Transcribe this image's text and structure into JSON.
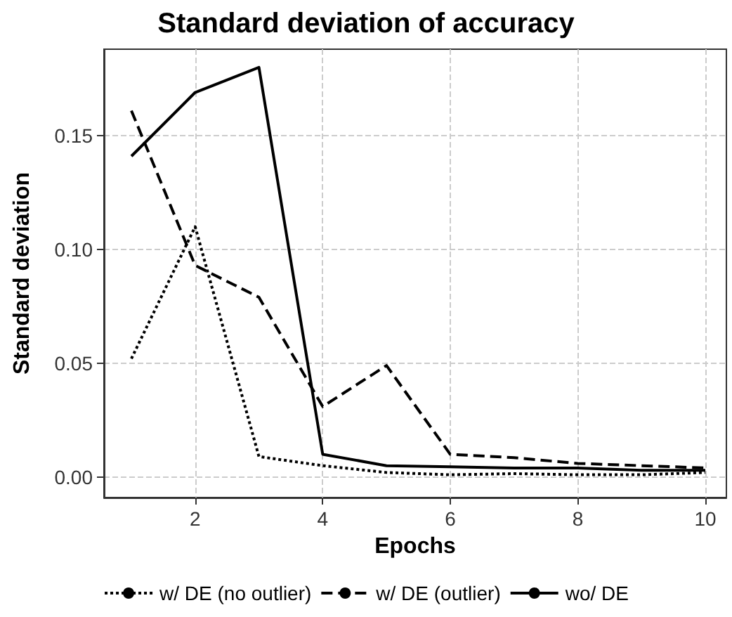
{
  "chart_data": {
    "type": "line",
    "title": "Standard deviation of accuracy",
    "xlabel": "Epochs",
    "ylabel": "Standard deviation",
    "x": [
      1,
      2,
      3,
      4,
      5,
      6,
      7,
      8,
      9,
      10
    ],
    "series": [
      {
        "name": "w/ DE (no outlier)",
        "color": "#000000",
        "line_style": "dotted",
        "values": [
          0.052,
          0.11,
          0.009,
          0.005,
          0.002,
          0.001,
          0.0015,
          0.001,
          0.001,
          0.002
        ]
      },
      {
        "name": "w/ DE (outlier)",
        "color": "#000000",
        "line_style": "dashed",
        "values": [
          0.161,
          0.093,
          0.079,
          0.031,
          0.049,
          0.01,
          0.0085,
          0.006,
          0.005,
          0.004
        ]
      },
      {
        "name": "wo/ DE",
        "color": "#000000",
        "line_style": "solid",
        "values": [
          0.141,
          0.169,
          0.18,
          0.01,
          0.005,
          0.0045,
          0.004,
          0.004,
          0.003,
          0.003
        ]
      }
    ],
    "xlim": [
      0.57,
      10.33
    ],
    "xticks": [
      2,
      4,
      6,
      8,
      10
    ],
    "ylim": [
      -0.009,
      0.188
    ],
    "yticks": [
      {
        "value": 0,
        "label": "0.00"
      },
      {
        "value": 0.05,
        "label": "0.05"
      },
      {
        "value": 0.1,
        "label": "0.10"
      },
      {
        "value": 0.15,
        "label": "0.15"
      }
    ],
    "grid": true,
    "legend": "bottom",
    "marker": "none"
  }
}
